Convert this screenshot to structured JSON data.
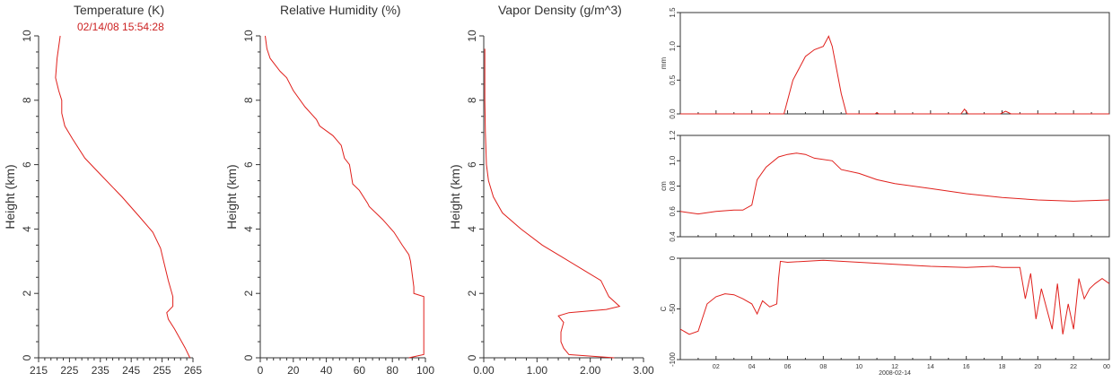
{
  "colors": {
    "trace": "#e0201c",
    "axis": "#333333",
    "text": "#333333",
    "stamp": "#cc2222"
  },
  "timestamp": "02/14/08 15:54:28",
  "chart_data": [
    {
      "type": "line",
      "title": "Temperature (K)",
      "ylabel": "Height (km)",
      "xlim": [
        215,
        265
      ],
      "ylim": [
        0,
        10
      ],
      "xticks": [
        "215",
        "225",
        "235",
        "245",
        "255",
        "265"
      ],
      "yticks": [
        "0",
        "2",
        "4",
        "6",
        "8",
        "10"
      ],
      "series": [
        {
          "x": [
            264,
            262.5,
            259,
            257,
            256.5,
            258.5,
            258.5,
            257,
            255.5,
            254.5,
            252,
            247.5,
            242,
            236,
            230,
            226,
            223.5,
            222.5,
            222.5,
            221.5,
            220.5,
            221,
            222
          ],
          "y": [
            0,
            0.3,
            0.9,
            1.2,
            1.4,
            1.6,
            1.9,
            2.4,
            3.0,
            3.4,
            3.9,
            4.4,
            5.0,
            5.6,
            6.2,
            6.8,
            7.2,
            7.6,
            8.0,
            8.3,
            8.7,
            9.3,
            10.0
          ]
        }
      ]
    },
    {
      "type": "line",
      "title": "Relative Humidity (%)",
      "ylabel": "Height (km)",
      "xlim": [
        0,
        100
      ],
      "ylim": [
        0,
        10
      ],
      "xticks": [
        "0",
        "20",
        "40",
        "60",
        "80",
        "100"
      ],
      "yticks": [
        "0",
        "2",
        "4",
        "6",
        "8",
        "10"
      ],
      "series": [
        {
          "x": [
            90,
            99,
            99,
            99,
            93,
            93,
            91,
            90,
            86,
            81,
            74,
            66,
            65,
            60,
            56,
            54,
            51,
            49,
            44,
            36,
            34,
            27,
            20,
            16,
            12,
            6,
            4,
            3
          ],
          "y": [
            0,
            0.1,
            1.0,
            1.9,
            2.0,
            2.2,
            3.0,
            3.2,
            3.5,
            3.9,
            4.3,
            4.7,
            4.8,
            5.2,
            5.4,
            6.0,
            6.2,
            6.6,
            6.9,
            7.2,
            7.4,
            7.8,
            8.3,
            8.7,
            8.9,
            9.3,
            9.6,
            10.0
          ]
        }
      ]
    },
    {
      "type": "line",
      "title": "Vapor Density (g/m^3)",
      "ylabel": "Height (km)",
      "xlim": [
        0,
        3
      ],
      "ylim": [
        0,
        10
      ],
      "xticks": [
        "0.00",
        "1.00",
        "2.00",
        "3.00"
      ],
      "yticks": [
        "0",
        "2",
        "4",
        "6",
        "8",
        "10"
      ],
      "series": [
        {
          "x": [
            2.45,
            1.6,
            1.5,
            1.45,
            1.45,
            1.5,
            1.4,
            1.6,
            2.3,
            2.55,
            2.35,
            2.2,
            1.9,
            1.5,
            1.1,
            0.7,
            0.35,
            0.18,
            0.09,
            0.05,
            0.03,
            0.02,
            0.02,
            0.02,
            0.02
          ],
          "y": [
            0,
            0.1,
            0.3,
            0.5,
            0.8,
            1.1,
            1.3,
            1.4,
            1.5,
            1.6,
            1.9,
            2.4,
            2.7,
            3.1,
            3.5,
            4.0,
            4.5,
            5.0,
            5.5,
            6.0,
            7.0,
            8.0,
            8.8,
            9.3,
            9.6
          ]
        }
      ]
    },
    {
      "type": "line",
      "ylabel": "mm",
      "xlim": [
        0,
        24
      ],
      "ylim": [
        0,
        1.5
      ],
      "yticks": [
        "0.0",
        "0.5",
        "1.0",
        "1.5"
      ],
      "series": [
        {
          "x": [
            0,
            5.8,
            5.9,
            6.3,
            7.0,
            7.5,
            8.0,
            8.3,
            8.5,
            9.0,
            9.3,
            9.4,
            10.9,
            11.0,
            11.1,
            15.7,
            15.9,
            16.1,
            17.9,
            18.2,
            18.5,
            24
          ],
          "y": [
            0,
            0,
            0.1,
            0.5,
            0.85,
            0.95,
            1.0,
            1.15,
            1.0,
            0.3,
            0,
            0,
            0,
            0.02,
            0,
            0,
            0.07,
            0,
            0,
            0.04,
            0,
            0
          ]
        }
      ]
    },
    {
      "type": "line",
      "ylabel": "cm",
      "xlim": [
        0,
        24
      ],
      "ylim": [
        0.4,
        1.2
      ],
      "yticks": [
        "0.4",
        "0.6",
        "0.8",
        "1.0",
        "1.2"
      ],
      "series": [
        {
          "x": [
            0,
            1,
            2,
            3,
            3.5,
            4.0,
            4.3,
            4.8,
            5.5,
            6,
            6.5,
            7,
            7.5,
            8.5,
            9,
            10,
            11,
            12,
            14,
            16,
            18,
            20,
            22,
            24
          ],
          "y": [
            0.6,
            0.58,
            0.6,
            0.61,
            0.61,
            0.65,
            0.85,
            0.95,
            1.03,
            1.05,
            1.06,
            1.05,
            1.02,
            1.0,
            0.93,
            0.9,
            0.85,
            0.82,
            0.78,
            0.74,
            0.71,
            0.69,
            0.68,
            0.69
          ]
        }
      ]
    },
    {
      "type": "line",
      "ylabel": "C",
      "xlim": [
        0,
        24
      ],
      "ylim": [
        -100,
        0
      ],
      "yticks": [
        "-100",
        "-50",
        "0"
      ],
      "xticks": [
        "02",
        "04",
        "06",
        "08",
        "10",
        "12",
        "14",
        "16",
        "18",
        "20",
        "22",
        "00"
      ],
      "xlabel": "2008-02-14",
      "series": [
        {
          "x": [
            0,
            0.5,
            1,
            1.5,
            2,
            2.5,
            3,
            3.5,
            4,
            4.3,
            4.6,
            5,
            5.4,
            5.5,
            5.6,
            6,
            8,
            10,
            12,
            14,
            16,
            17.5,
            18,
            19,
            19.3,
            19.6,
            19.9,
            20.2,
            20.5,
            20.8,
            21.1,
            21.4,
            21.7,
            22,
            22.3,
            22.6,
            22.9,
            23.2,
            23.6,
            24
          ],
          "y": [
            -70,
            -75,
            -72,
            -45,
            -38,
            -35,
            -36,
            -40,
            -45,
            -55,
            -42,
            -48,
            -45,
            -20,
            -3,
            -4,
            -2,
            -4,
            -6,
            -8,
            -9,
            -8,
            -9,
            -9,
            -40,
            -15,
            -60,
            -30,
            -50,
            -70,
            -25,
            -75,
            -45,
            -70,
            -20,
            -40,
            -30,
            -25,
            -20,
            -25
          ]
        }
      ]
    }
  ]
}
